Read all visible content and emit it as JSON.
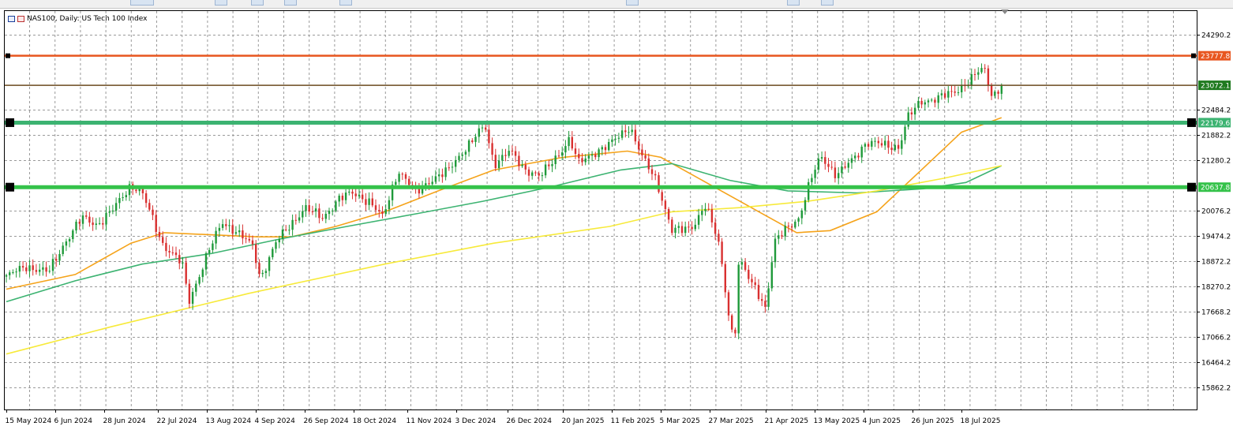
{
  "window": {
    "title": "NAS100, Daily: US Tech 100 Index",
    "symbol": "NAS100",
    "timeframe": "Daily",
    "description": "US Tech 100 Index"
  },
  "chart_data": {
    "type": "candlestick",
    "title": "NAS100, Daily: US Tech 100 Index",
    "xlabel": "",
    "ylabel": "",
    "ylim": [
      15500,
      24600
    ],
    "grid": true,
    "y_ticks": [
      "24290.2",
      "22484.2",
      "21882.2",
      "21280.2",
      "20076.2",
      "19474.2",
      "18872.2",
      "18270.2",
      "17668.2",
      "17066.2",
      "16464.2",
      "15862.2"
    ],
    "x_ticks": [
      {
        "label": "15 May 2024",
        "date": "2024-05-15"
      },
      {
        "label": "6 Jun 2024",
        "date": "2024-06-06"
      },
      {
        "label": "28 Jun 2024",
        "date": "2024-06-28"
      },
      {
        "label": "22 Jul 2024",
        "date": "2024-07-22"
      },
      {
        "label": "13 Aug 2024",
        "date": "2024-08-13"
      },
      {
        "label": "4 Sep 2024",
        "date": "2024-09-04"
      },
      {
        "label": "26 Sep 2024",
        "date": "2024-09-26"
      },
      {
        "label": "18 Oct 2024",
        "date": "2024-10-18"
      },
      {
        "label": "11 Nov 2024",
        "date": "2024-11-11"
      },
      {
        "label": "3 Dec 2024",
        "date": "2024-12-03"
      },
      {
        "label": "26 Dec 2024",
        "date": "2024-12-26"
      },
      {
        "label": "20 Jan 2025",
        "date": "2025-01-20"
      },
      {
        "label": "11 Feb 2025",
        "date": "2025-02-11"
      },
      {
        "label": "5 Mar 2025",
        "date": "2025-03-05"
      },
      {
        "label": "27 Mar 2025",
        "date": "2025-03-27"
      },
      {
        "label": "21 Apr 2025",
        "date": "2025-04-21"
      },
      {
        "label": "13 May 2025",
        "date": "2025-05-13"
      },
      {
        "label": "4 Jun 2025",
        "date": "2025-06-04"
      },
      {
        "label": "26 Jun 2025",
        "date": "2025-06-26"
      },
      {
        "label": "18 Jul 2025",
        "date": "2025-07-18"
      }
    ],
    "price_path": [
      [
        "2024-05-15",
        18500
      ],
      [
        "2024-05-24",
        18750
      ],
      [
        "2024-06-03",
        18600
      ],
      [
        "2024-06-10",
        19300
      ],
      [
        "2024-06-18",
        19900
      ],
      [
        "2024-06-25",
        19750
      ],
      [
        "2024-07-02",
        20100
      ],
      [
        "2024-07-10",
        20700
      ],
      [
        "2024-07-15",
        20500
      ],
      [
        "2024-07-24",
        19300
      ],
      [
        "2024-08-02",
        18800
      ],
      [
        "2024-08-05",
        17900
      ],
      [
        "2024-08-13",
        19000
      ],
      [
        "2024-08-20",
        19800
      ],
      [
        "2024-08-26",
        19600
      ],
      [
        "2024-09-03",
        19200
      ],
      [
        "2024-09-06",
        18450
      ],
      [
        "2024-09-13",
        19300
      ],
      [
        "2024-09-19",
        19700
      ],
      [
        "2024-09-26",
        20150
      ],
      [
        "2024-10-04",
        19900
      ],
      [
        "2024-10-11",
        20350
      ],
      [
        "2024-10-18",
        20500
      ],
      [
        "2024-10-25",
        20300
      ],
      [
        "2024-10-31",
        19900
      ],
      [
        "2024-11-07",
        21050
      ],
      [
        "2024-11-15",
        20500
      ],
      [
        "2024-11-21",
        20800
      ],
      [
        "2024-11-29",
        21000
      ],
      [
        "2024-12-06",
        21500
      ],
      [
        "2024-12-16",
        22100
      ],
      [
        "2024-12-20",
        21200
      ],
      [
        "2024-12-27",
        21500
      ],
      [
        "2025-01-02",
        21100
      ],
      [
        "2025-01-10",
        20900
      ],
      [
        "2025-01-17",
        21350
      ],
      [
        "2025-01-23",
        21800
      ],
      [
        "2025-01-27",
        21200
      ],
      [
        "2025-02-04",
        21500
      ],
      [
        "2025-02-10",
        21650
      ],
      [
        "2025-02-19",
        22100
      ],
      [
        "2025-02-25",
        21300
      ],
      [
        "2025-03-03",
        20800
      ],
      [
        "2025-03-10",
        19600
      ],
      [
        "2025-03-14",
        19600
      ],
      [
        "2025-03-19",
        19700
      ],
      [
        "2025-03-25",
        20200
      ],
      [
        "2025-03-31",
        19300
      ],
      [
        "2025-04-04",
        17800
      ],
      [
        "2025-04-07",
        16800
      ],
      [
        "2025-04-09",
        18900
      ],
      [
        "2025-04-14",
        18400
      ],
      [
        "2025-04-17",
        18200
      ],
      [
        "2025-04-21",
        17750
      ],
      [
        "2025-04-25",
        19300
      ],
      [
        "2025-05-01",
        19700
      ],
      [
        "2025-05-06",
        19900
      ],
      [
        "2025-05-12",
        20900
      ],
      [
        "2025-05-16",
        21400
      ],
      [
        "2025-05-23",
        20900
      ],
      [
        "2025-05-30",
        21300
      ],
      [
        "2025-06-05",
        21700
      ],
      [
        "2025-06-13",
        21650
      ],
      [
        "2025-06-20",
        21600
      ],
      [
        "2025-06-24",
        22300
      ],
      [
        "2025-06-30",
        22700
      ],
      [
        "2025-07-07",
        22750
      ],
      [
        "2025-07-14",
        22900
      ],
      [
        "2025-07-21",
        23150
      ],
      [
        "2025-07-28",
        23500
      ],
      [
        "2025-08-01",
        22800
      ],
      [
        "2025-08-05",
        23072
      ]
    ],
    "moving_averages": [
      {
        "color": "#f5a31a",
        "points": [
          [
            "2024-05-15",
            18200
          ],
          [
            "2024-06-15",
            18550
          ],
          [
            "2024-07-10",
            19300
          ],
          [
            "2024-07-25",
            19550
          ],
          [
            "2024-08-15",
            19500
          ],
          [
            "2024-09-05",
            19450
          ],
          [
            "2024-09-20",
            19450
          ],
          [
            "2024-10-10",
            19700
          ],
          [
            "2024-11-01",
            20050
          ],
          [
            "2024-11-25",
            20550
          ],
          [
            "2024-12-20",
            21050
          ],
          [
            "2025-01-20",
            21350
          ],
          [
            "2025-02-18",
            21500
          ],
          [
            "2025-03-05",
            21350
          ],
          [
            "2025-03-27",
            20700
          ],
          [
            "2025-04-18",
            20050
          ],
          [
            "2025-05-05",
            19550
          ],
          [
            "2025-05-20",
            19600
          ],
          [
            "2025-06-10",
            20050
          ],
          [
            "2025-06-30",
            21050
          ],
          [
            "2025-07-18",
            21950
          ],
          [
            "2025-08-05",
            22300
          ]
        ]
      },
      {
        "color": "#3cb371",
        "points": [
          [
            "2024-05-15",
            17900
          ],
          [
            "2024-06-15",
            18400
          ],
          [
            "2024-07-15",
            18800
          ],
          [
            "2024-08-15",
            19050
          ],
          [
            "2024-09-15",
            19400
          ],
          [
            "2024-10-15",
            19700
          ],
          [
            "2024-11-15",
            20000
          ],
          [
            "2024-12-15",
            20300
          ],
          [
            "2025-01-15",
            20650
          ],
          [
            "2025-02-15",
            21050
          ],
          [
            "2025-03-10",
            21200
          ],
          [
            "2025-04-05",
            20800
          ],
          [
            "2025-05-01",
            20550
          ],
          [
            "2025-06-01",
            20500
          ],
          [
            "2025-07-01",
            20600
          ],
          [
            "2025-07-20",
            20750
          ],
          [
            "2025-08-05",
            21150
          ]
        ]
      },
      {
        "color": "#f7ea3a",
        "points": [
          [
            "2024-05-15",
            16650
          ],
          [
            "2024-07-01",
            17300
          ],
          [
            "2024-09-01",
            18100
          ],
          [
            "2024-11-01",
            18800
          ],
          [
            "2024-12-20",
            19300
          ],
          [
            "2025-02-10",
            19700
          ],
          [
            "2025-03-10",
            20050
          ],
          [
            "2025-04-10",
            20150
          ],
          [
            "2025-05-10",
            20300
          ],
          [
            "2025-06-10",
            20550
          ],
          [
            "2025-07-10",
            20850
          ],
          [
            "2025-08-05",
            21150
          ]
        ]
      }
    ],
    "horizontal_levels": [
      {
        "value": 23777.8,
        "label": "23777.8",
        "color": "#e8561f"
      },
      {
        "value": 23072.1,
        "label": "23072.1",
        "color": "#6b4a1f"
      },
      {
        "value": 22179.6,
        "label": "22179.6",
        "color": "#3cb371"
      },
      {
        "value": 20637.8,
        "label": "20637.8",
        "color": "#35c24a"
      }
    ],
    "current_price": 23072.1
  }
}
